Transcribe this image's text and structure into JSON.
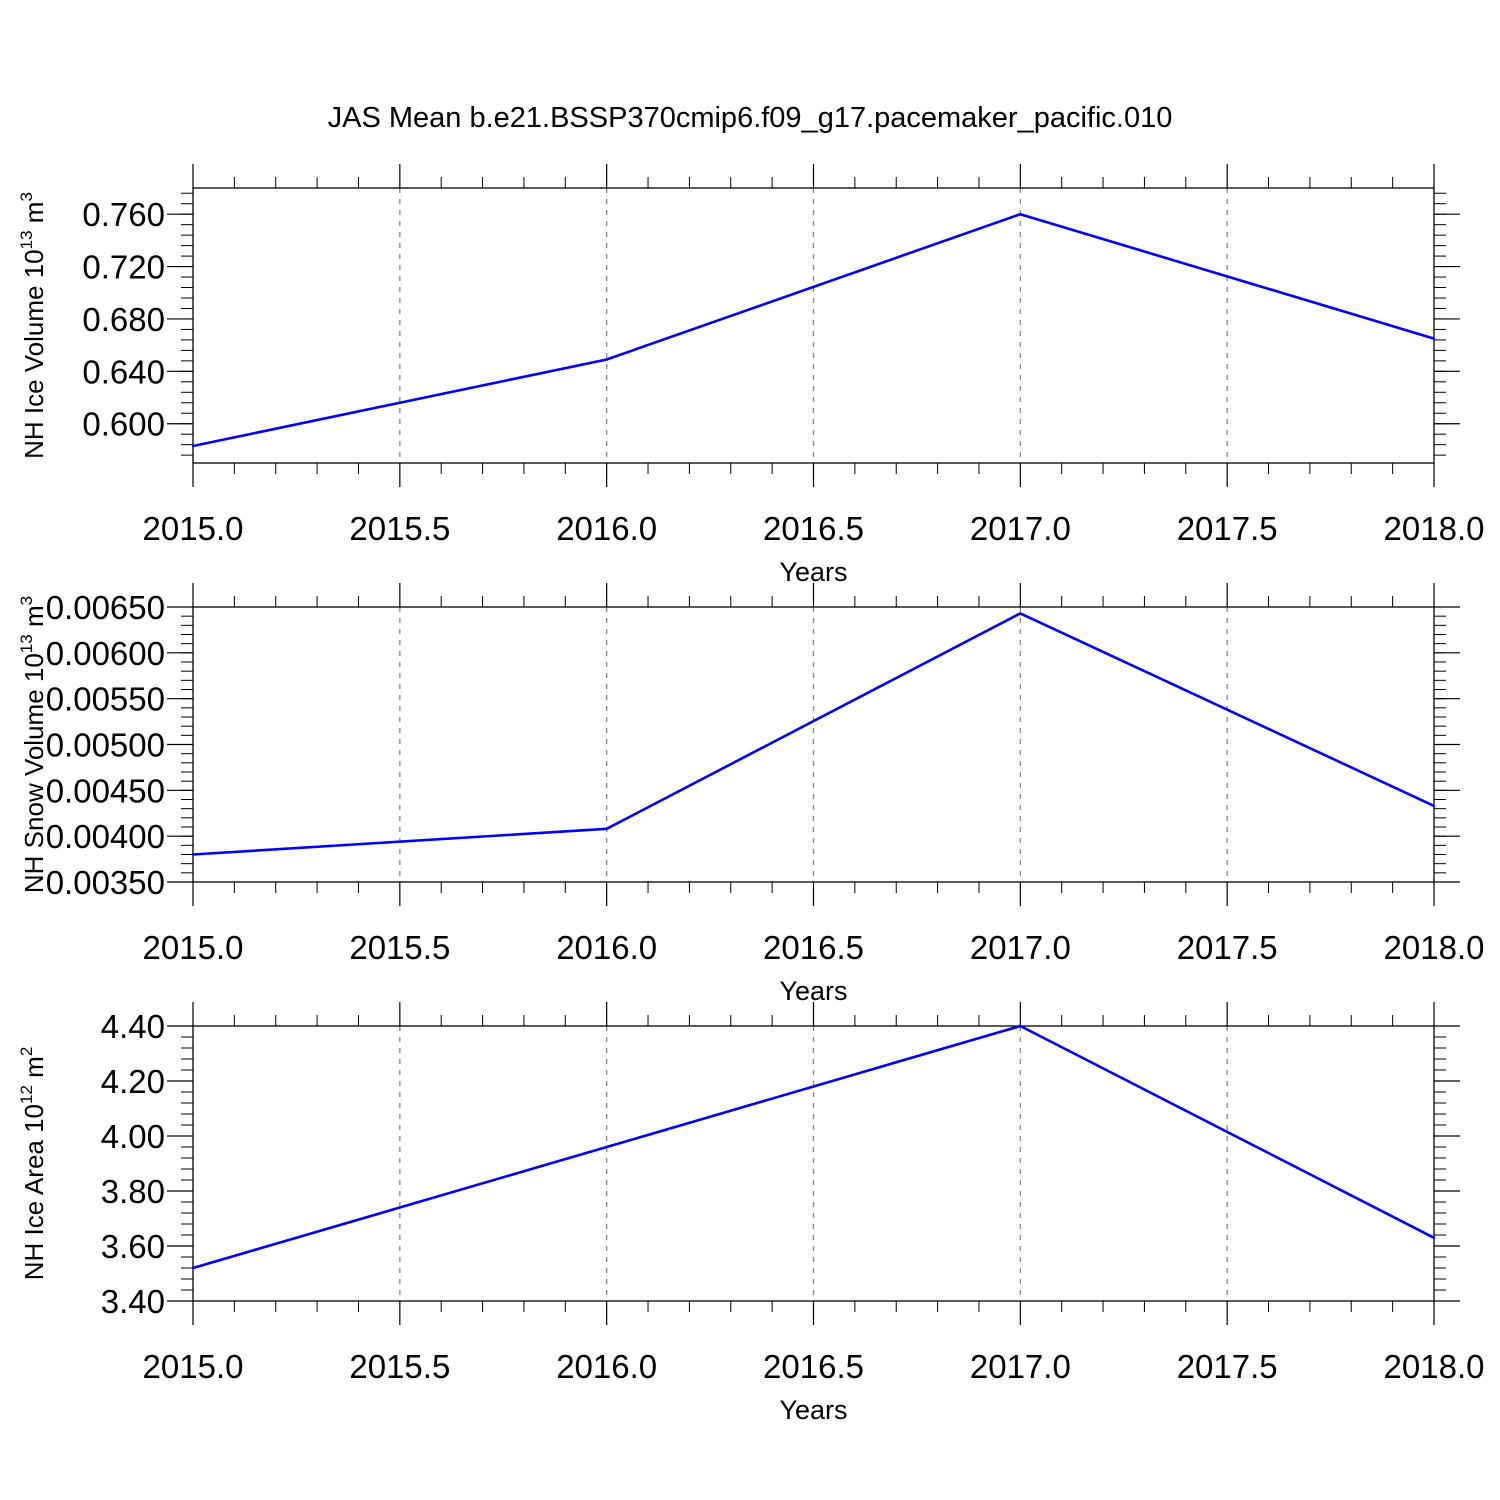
{
  "title": "JAS Mean b.e21.BSSP370cmip6.f09_g17.pacemaker_pacific.010",
  "line_color": "#0000ff",
  "chart_data": [
    {
      "type": "line",
      "xlabel": "Years",
      "ylabel": "NH Ice Volume 10",
      "ylabel_exp": "13",
      "ylabel_unit": " m",
      "ylabel_unit_exp": "3",
      "xlim": [
        2015.0,
        2018.0
      ],
      "ylim": [
        0.57,
        0.78
      ],
      "xticks": [
        2015.0,
        2015.5,
        2016.0,
        2016.5,
        2017.0,
        2017.5,
        2018.0
      ],
      "xtick_labels": [
        "2015.0",
        "2015.5",
        "2016.0",
        "2016.5",
        "2017.0",
        "2017.5",
        "2018.0"
      ],
      "yticks": [
        0.6,
        0.64,
        0.68,
        0.72,
        0.76
      ],
      "ytick_labels": [
        "0.600",
        "0.640",
        "0.680",
        "0.720",
        "0.760"
      ],
      "x": [
        2015.0,
        2016.0,
        2017.0,
        2018.0
      ],
      "y": [
        0.583,
        0.649,
        0.76,
        0.665
      ]
    },
    {
      "type": "line",
      "xlabel": "Years",
      "ylabel": "NH Snow Volume 10",
      "ylabel_exp": "13",
      "ylabel_unit": " m",
      "ylabel_unit_exp": "3",
      "xlim": [
        2015.0,
        2018.0
      ],
      "ylim": [
        0.0035,
        0.0065
      ],
      "xticks": [
        2015.0,
        2015.5,
        2016.0,
        2016.5,
        2017.0,
        2017.5,
        2018.0
      ],
      "xtick_labels": [
        "2015.0",
        "2015.5",
        "2016.0",
        "2016.5",
        "2017.0",
        "2017.5",
        "2018.0"
      ],
      "yticks": [
        0.0035,
        0.004,
        0.0045,
        0.005,
        0.0055,
        0.006,
        0.0065
      ],
      "ytick_labels": [
        "0.00350",
        "0.00400",
        "0.00450",
        "0.00500",
        "0.00550",
        "0.00600",
        "0.00650"
      ],
      "x": [
        2015.0,
        2016.0,
        2017.0,
        2018.0
      ],
      "y": [
        0.0038,
        0.00408,
        0.00643,
        0.00433
      ]
    },
    {
      "type": "line",
      "xlabel": "Years",
      "ylabel": "NH Ice Area 10",
      "ylabel_exp": "12",
      "ylabel_unit": " m",
      "ylabel_unit_exp": "2",
      "xlim": [
        2015.0,
        2018.0
      ],
      "ylim": [
        3.4,
        4.4
      ],
      "xticks": [
        2015.0,
        2015.5,
        2016.0,
        2016.5,
        2017.0,
        2017.5,
        2018.0
      ],
      "xtick_labels": [
        "2015.0",
        "2015.5",
        "2016.0",
        "2016.5",
        "2017.0",
        "2017.5",
        "2018.0"
      ],
      "yticks": [
        3.4,
        3.6,
        3.8,
        4.0,
        4.2,
        4.4
      ],
      "ytick_labels": [
        "3.40",
        "3.60",
        "3.80",
        "4.00",
        "4.20",
        "4.40"
      ],
      "x": [
        2015.0,
        2016.0,
        2017.0,
        2018.0
      ],
      "y": [
        3.52,
        3.96,
        4.4,
        3.63
      ]
    }
  ]
}
